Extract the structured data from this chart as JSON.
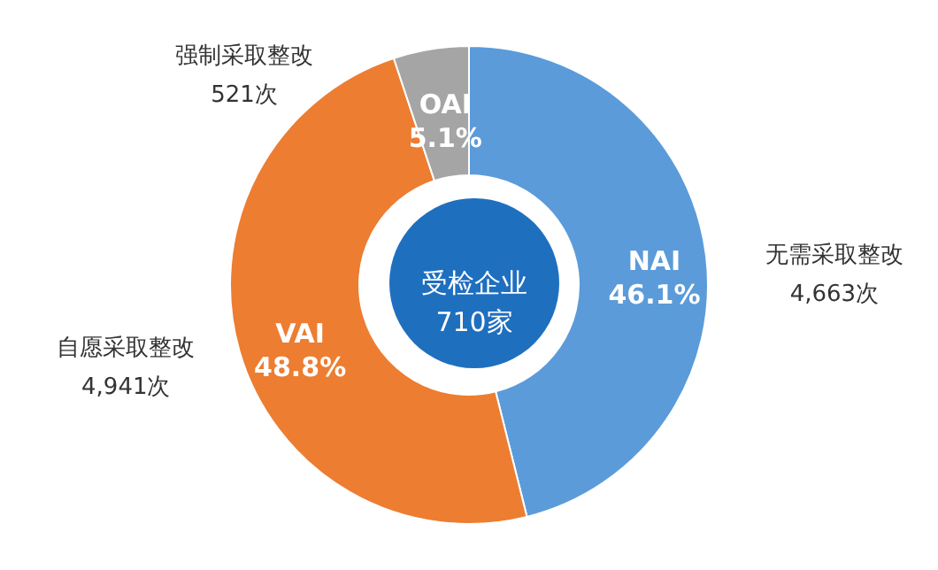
{
  "chart_data": {
    "type": "donut",
    "categories": [
      "NAI",
      "VAI",
      "OAI"
    ],
    "values": [
      46.1,
      48.8,
      5.1
    ],
    "value_labels": [
      "46.1%",
      "48.8%",
      "5.1%"
    ],
    "colors": [
      "#5b9bd9",
      "#ed7d31",
      "#a5a5a5"
    ],
    "annotations": [
      "无需采取整改\n4,663次",
      "自愿采取整改\n4,941次",
      "强制采取整改\n521次",
      "受检企业\n710家"
    ],
    "legend": false
  }
}
